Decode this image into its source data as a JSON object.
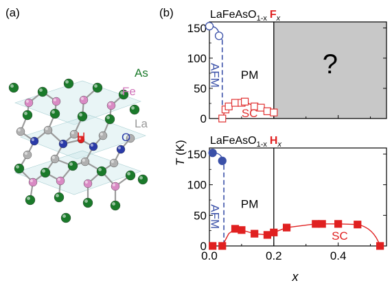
{
  "panel_labels": {
    "a": "(a)",
    "b": "(b)"
  },
  "crystal": {
    "atoms": {
      "as": "As",
      "fe": "Fe",
      "la": "La",
      "h": "H",
      "o": "O"
    },
    "colors": {
      "as": "#1a7a2a",
      "fe": "#d98ac4",
      "la": "#b0b0b0",
      "h": "#e02020",
      "o": "#2a3aa8",
      "bond": "#9a9a9a",
      "plane": "#cfe8ea"
    }
  },
  "chart_data": [
    {
      "type": "scatter",
      "title_main": "LaFeAsO",
      "title_sub": "1-x",
      "title_dopant": "F",
      "title_dopant_sub": "x",
      "xlim": [
        0,
        0.55
      ],
      "ylim": [
        0,
        160
      ],
      "yticks": [
        0,
        50,
        100,
        150
      ],
      "xticks": [
        0.0,
        0.2,
        0.4
      ],
      "ylabel": "T (K)",
      "regions": {
        "afm": "AFM",
        "pm": "PM",
        "sc": "SC",
        "unknown": "?"
      },
      "unknown_region_x": [
        0.2,
        0.55
      ],
      "boundary_x": 0.2,
      "afm_series": {
        "marker": "open-circle",
        "color": "#3a50a8",
        "points": [
          {
            "x": 0.0,
            "y": 153
          },
          {
            "x": 0.03,
            "y": 137
          }
        ]
      },
      "afm_boundary_x": 0.04,
      "sc_series": {
        "marker": "open-square",
        "color": "#e03030",
        "points": [
          {
            "x": 0.04,
            "y": 0
          },
          {
            "x": 0.05,
            "y": 15
          },
          {
            "x": 0.06,
            "y": 20
          },
          {
            "x": 0.08,
            "y": 26
          },
          {
            "x": 0.1,
            "y": 26
          },
          {
            "x": 0.11,
            "y": 28
          },
          {
            "x": 0.14,
            "y": 20
          },
          {
            "x": 0.16,
            "y": 18
          },
          {
            "x": 0.18,
            "y": 12
          },
          {
            "x": 0.2,
            "y": 10
          }
        ]
      }
    },
    {
      "type": "scatter",
      "title_main": "LaFeAsO",
      "title_sub": "1-x",
      "title_dopant": "H",
      "title_dopant_sub": "x",
      "xlim": [
        0,
        0.55
      ],
      "ylim": [
        0,
        160
      ],
      "yticks": [
        0,
        50,
        100,
        150
      ],
      "xticks": [
        0.0,
        0.2,
        0.4
      ],
      "xticklabels": [
        "0.0",
        "0.2",
        "0.4"
      ],
      "xlabel": "x",
      "ylabel": "T (K)",
      "regions": {
        "afm": "AFM",
        "pm": "PM",
        "sc": "SC"
      },
      "boundary_x": 0.2,
      "afm_series": {
        "marker": "filled-circle",
        "color": "#3a50a8",
        "points": [
          {
            "x": 0.01,
            "y": 152
          },
          {
            "x": 0.04,
            "y": 139
          }
        ]
      },
      "afm_boundary_x": 0.045,
      "sc_series": {
        "marker": "filled-square",
        "color": "#e02020",
        "points": [
          {
            "x": 0.01,
            "y": 0
          },
          {
            "x": 0.04,
            "y": 0
          },
          {
            "x": 0.08,
            "y": 28
          },
          {
            "x": 0.1,
            "y": 26
          },
          {
            "x": 0.14,
            "y": 20
          },
          {
            "x": 0.18,
            "y": 18
          },
          {
            "x": 0.2,
            "y": 22
          },
          {
            "x": 0.24,
            "y": 30
          },
          {
            "x": 0.33,
            "y": 36
          },
          {
            "x": 0.35,
            "y": 36
          },
          {
            "x": 0.4,
            "y": 36
          },
          {
            "x": 0.46,
            "y": 35
          },
          {
            "x": 0.53,
            "y": 0
          }
        ]
      }
    }
  ]
}
